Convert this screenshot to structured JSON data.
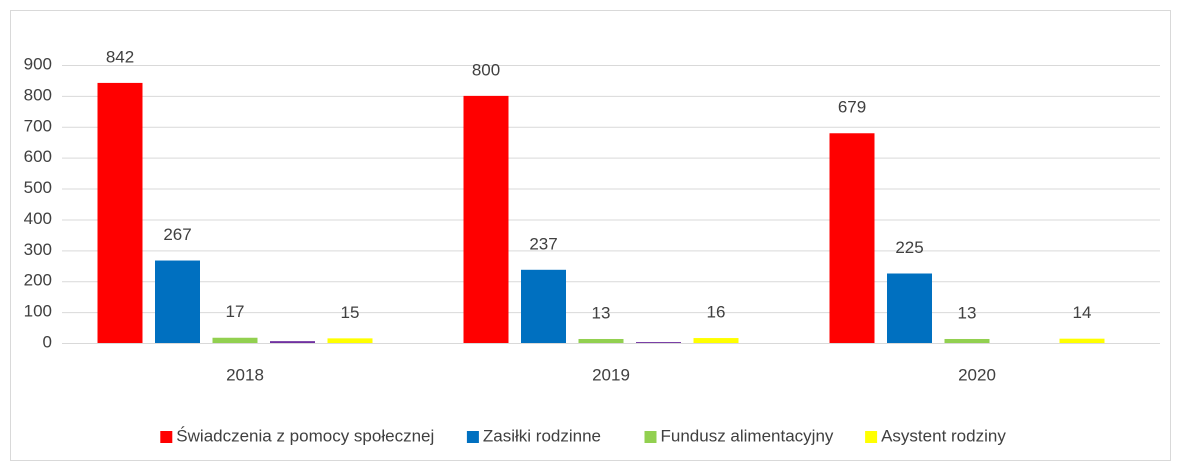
{
  "chart_data": {
    "type": "bar",
    "categories": [
      "2018",
      "2019",
      "2020"
    ],
    "series": [
      {
        "name": "Świadczenia z pomocy społecznej",
        "color": "#ff0000",
        "values": [
          842,
          800,
          679
        ]
      },
      {
        "name": "Zasiłki rodzinne",
        "color": "#0070c0",
        "values": [
          267,
          237,
          225
        ]
      },
      {
        "name": "Fundusz alimentacyjny",
        "color": "#92d050",
        "values": [
          17,
          13,
          13
        ]
      },
      {
        "color": "#7030a0",
        "values": [
          6,
          3,
          0
        ]
      },
      {
        "name": "Asystent rodziny",
        "color": "#ffff00",
        "values": [
          15,
          16,
          14
        ]
      }
    ],
    "data_labels": [
      true,
      true,
      true,
      false,
      true
    ],
    "ylim": [
      0,
      900
    ],
    "yticks": [
      0,
      100,
      200,
      300,
      400,
      500,
      600,
      700,
      800,
      900
    ],
    "grid": true,
    "legend": "bottom"
  }
}
